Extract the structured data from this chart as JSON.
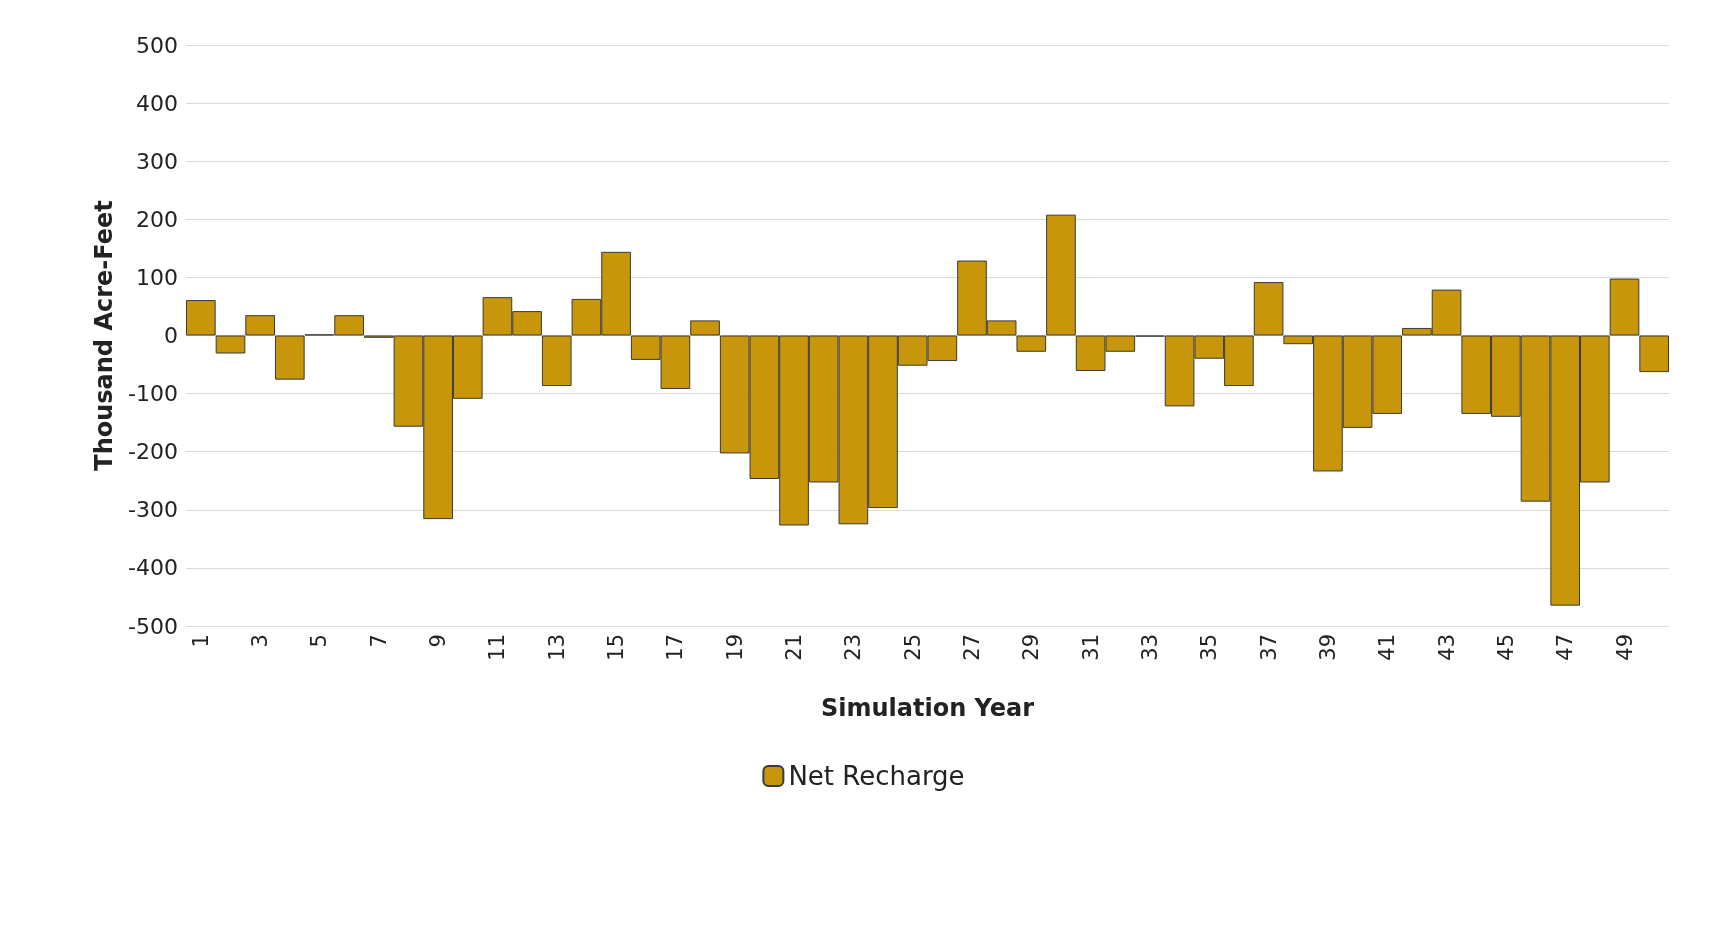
{
  "chart_data": {
    "type": "bar",
    "xlabel": "Simulation Year",
    "ylabel": "Thousand Acre-Feet",
    "categories": [
      "1",
      null,
      "3",
      null,
      "5",
      null,
      "7",
      null,
      "9",
      null,
      "11",
      null,
      "13",
      null,
      "15",
      null,
      "17",
      null,
      "19",
      null,
      "21",
      null,
      "23",
      null,
      "25",
      null,
      "27",
      null,
      "29",
      null,
      "31",
      null,
      "33",
      null,
      "35",
      null,
      "37",
      null,
      "39",
      null,
      "41",
      null,
      "43",
      null,
      "45",
      null,
      "47",
      null,
      "49",
      null
    ],
    "series": [
      {
        "name": "Net Recharge",
        "color": "#c8960a",
        "values": [
          61,
          -31,
          35,
          -76,
          2,
          35,
          -4,
          -157,
          -316,
          -109,
          66,
          42,
          -87,
          63,
          144,
          -42,
          -92,
          26,
          -203,
          -247,
          -327,
          -253,
          -325,
          -297,
          -52,
          -44,
          129,
          26,
          -28,
          208,
          -61,
          -28,
          -2,
          -122,
          -40,
          -87,
          92,
          -15,
          -234,
          -159,
          -135,
          13,
          79,
          -135,
          -140,
          -286,
          -465,
          -253,
          98,
          -63
        ]
      }
    ],
    "ylim": [
      -500,
      500
    ],
    "yticks": [
      -500,
      -400,
      -300,
      -200,
      -100,
      0,
      100,
      200,
      300,
      400,
      500
    ],
    "grid": "y",
    "legend": "bottom"
  }
}
